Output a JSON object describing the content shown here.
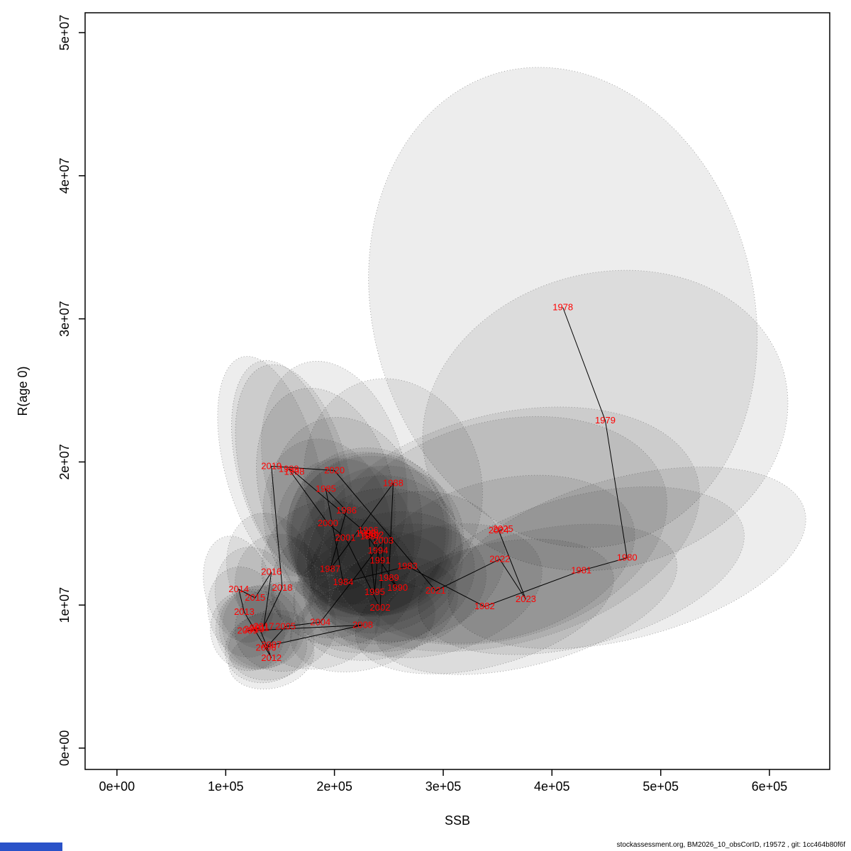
{
  "footer": {
    "text": "stockassessment.org, BM2026_10_obsCorID, r19572 , git: 1cc464b80f6f"
  },
  "accents": {
    "bottom_bar_color": "#2a52c8"
  },
  "chart_data": {
    "type": "scatter",
    "title": "",
    "xlabel": "SSB",
    "ylabel": "R(age 0)",
    "xlim": [
      -29300,
      655400
    ],
    "ylim": [
      -1490000,
      51390000
    ],
    "x_ticks": {
      "values": [
        0,
        100000,
        200000,
        300000,
        400000,
        500000,
        600000
      ],
      "labels": [
        "0e+00",
        "1e+05",
        "2e+05",
        "3e+05",
        "4e+05",
        "5e+05",
        "6e+05"
      ]
    },
    "y_ticks": {
      "values": [
        0,
        10000000,
        20000000,
        30000000,
        40000000,
        50000000
      ],
      "labels": [
        "0e+00",
        "1e+07",
        "2e+07",
        "3e+07",
        "4e+07",
        "5e+07"
      ]
    },
    "grid": false,
    "line_color": "#000000",
    "label_color": "#ff0000",
    "ellipse_style": {
      "fill": "#000000",
      "fill_opacity": 0.07,
      "stroke": "#777777",
      "dash": "1,3",
      "rotation": -15
    },
    "points": [
      {
        "year": 1978,
        "ssb": 410000,
        "r": 30800000,
        "rx": 175000,
        "ry": 17000000
      },
      {
        "year": 1979,
        "ssb": 449000,
        "r": 22900000,
        "rx": 170000,
        "ry": 10300000
      },
      {
        "year": 1980,
        "ssb": 469000,
        "r": 13300000,
        "rx": 169000,
        "ry": 5600000
      },
      {
        "year": 1981,
        "ssb": 427000,
        "r": 12400000,
        "rx": 154000,
        "ry": 5200000
      },
      {
        "year": 1982,
        "ssb": 338000,
        "r": 9900000,
        "rx": 122000,
        "ry": 4200000
      },
      {
        "year": 1983,
        "ssb": 267000,
        "r": 12700000,
        "rx": 91000,
        "ry": 5100000
      },
      {
        "year": 1984,
        "ssb": 208000,
        "r": 11600000,
        "rx": 67000,
        "ry": 4400000
      },
      {
        "year": 1985,
        "ssb": 192000,
        "r": 18100000,
        "rx": 61000,
        "ry": 7200000
      },
      {
        "year": 1986,
        "ssb": 211000,
        "r": 16600000,
        "rx": 68000,
        "ry": 6600000
      },
      {
        "year": 1987,
        "ssb": 196000,
        "r": 12500000,
        "rx": 63000,
        "ry": 4800000
      },
      {
        "year": 1988,
        "ssb": 254000,
        "r": 18500000,
        "rx": 81000,
        "ry": 7400000
      },
      {
        "year": 1989,
        "ssb": 250000,
        "r": 11900000,
        "rx": 80000,
        "ry": 4500000
      },
      {
        "year": 1990,
        "ssb": 258000,
        "r": 11200000,
        "rx": 83000,
        "ry": 4300000
      },
      {
        "year": 1991,
        "ssb": 242000,
        "r": 13100000,
        "rx": 77000,
        "ry": 5000000
      },
      {
        "year": 1992,
        "ssb": 236000,
        "r": 14900000,
        "rx": 76000,
        "ry": 5700000
      },
      {
        "year": 1993,
        "ssb": 229000,
        "r": 15000000,
        "rx": 73000,
        "ry": 5700000
      },
      {
        "year": 1994,
        "ssb": 240000,
        "r": 13800000,
        "rx": 77000,
        "ry": 5200000
      },
      {
        "year": 1995,
        "ssb": 237000,
        "r": 10900000,
        "rx": 76000,
        "ry": 4100000
      },
      {
        "year": 1996,
        "ssb": 231000,
        "r": 15200000,
        "rx": 74000,
        "ry": 5800000
      },
      {
        "year": 1997,
        "ssb": 233000,
        "r": 14800000,
        "rx": 75000,
        "ry": 5600000
      },
      {
        "year": 1998,
        "ssb": 163000,
        "r": 19300000,
        "rx": 49000,
        "ry": 7700000
      },
      {
        "year": 1999,
        "ssb": 158000,
        "r": 19500000,
        "rx": 47000,
        "ry": 7800000
      },
      {
        "year": 2000,
        "ssb": 194000,
        "r": 15700000,
        "rx": 58000,
        "ry": 6000000
      },
      {
        "year": 2001,
        "ssb": 210000,
        "r": 14700000,
        "rx": 63000,
        "ry": 5600000
      },
      {
        "year": 2002,
        "ssb": 242000,
        "r": 9800000,
        "rx": 73000,
        "ry": 3500000
      },
      {
        "year": 2003,
        "ssb": 245000,
        "r": 14500000,
        "rx": 74000,
        "ry": 5200000
      },
      {
        "year": 2004,
        "ssb": 187000,
        "r": 8800000,
        "rx": 56000,
        "ry": 3200000
      },
      {
        "year": 2005,
        "ssb": 155000,
        "r": 8500000,
        "rx": 47000,
        "ry": 3100000
      },
      {
        "year": 2006,
        "ssb": 137000,
        "r": 7000000,
        "rx": 38000,
        "ry": 2400000
      },
      {
        "year": 2007,
        "ssb": 142000,
        "r": 7200000,
        "rx": 40000,
        "ry": 2400000
      },
      {
        "year": 2008,
        "ssb": 226000,
        "r": 8600000,
        "rx": 68000,
        "ry": 3100000
      },
      {
        "year": 2009,
        "ssb": 120000,
        "r": 8200000,
        "rx": 34000,
        "ry": 2800000
      },
      {
        "year": 2010,
        "ssb": 126000,
        "r": 8300000,
        "rx": 35000,
        "ry": 2800000
      },
      {
        "year": 2011,
        "ssb": 131000,
        "r": 8400000,
        "rx": 37000,
        "ry": 2900000
      },
      {
        "year": 2012,
        "ssb": 142000,
        "r": 6300000,
        "rx": 40000,
        "ry": 2100000
      },
      {
        "year": 2013,
        "ssb": 117000,
        "r": 9500000,
        "rx": 33000,
        "ry": 3200000
      },
      {
        "year": 2014,
        "ssb": 112000,
        "r": 11100000,
        "rx": 31000,
        "ry": 3800000
      },
      {
        "year": 2015,
        "ssb": 127000,
        "r": 10500000,
        "rx": 36000,
        "ry": 3600000
      },
      {
        "year": 2016,
        "ssb": 142000,
        "r": 12300000,
        "rx": 40000,
        "ry": 4200000
      },
      {
        "year": 2017,
        "ssb": 135000,
        "r": 8500000,
        "rx": 38000,
        "ry": 2900000
      },
      {
        "year": 2018,
        "ssb": 152000,
        "r": 11200000,
        "rx": 43000,
        "ry": 3800000
      },
      {
        "year": 2019,
        "ssb": 142000,
        "r": 19700000,
        "rx": 43000,
        "ry": 7900000
      },
      {
        "year": 2020,
        "ssb": 200000,
        "r": 19400000,
        "rx": 64000,
        "ry": 7800000
      },
      {
        "year": 2021,
        "ssb": 293000,
        "r": 11000000,
        "rx": 100000,
        "ry": 4400000
      },
      {
        "year": 2022,
        "ssb": 352000,
        "r": 13200000,
        "rx": 127000,
        "ry": 5500000
      },
      {
        "year": 2023,
        "ssb": 376000,
        "r": 10400000,
        "rx": 143000,
        "ry": 4600000
      },
      {
        "year": 2024,
        "ssb": 351000,
        "r": 15200000,
        "rx": 158000,
        "ry": 7600000
      },
      {
        "year": 2025,
        "ssb": 355000,
        "r": 15300000,
        "rx": 185000,
        "ry": 8000000
      }
    ]
  }
}
